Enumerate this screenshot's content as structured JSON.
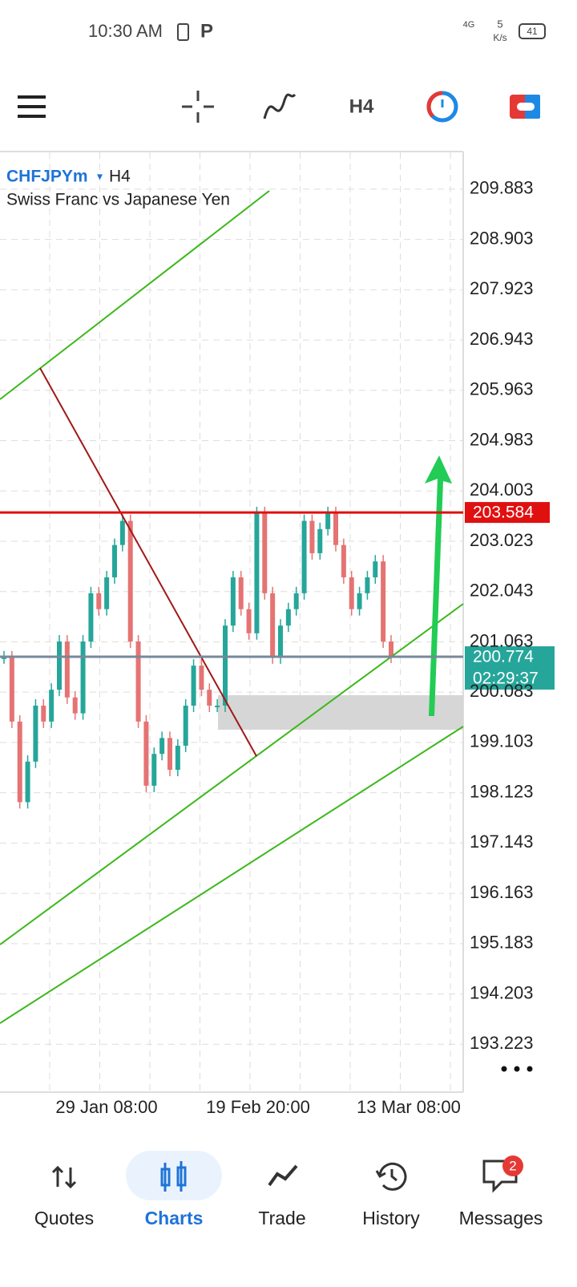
{
  "status_bar": {
    "time": "10:30 AM",
    "network": "4G",
    "speed": "5",
    "speed_unit": "K/s",
    "battery": "41"
  },
  "toolbar": {
    "timeframe": "H4"
  },
  "chart_data": {
    "type": "candlestick",
    "symbol": "CHFJPYm",
    "timeframe": "H4",
    "description": "Swiss Franc vs Japanese Yen",
    "values": [
      200.76,
      199.51,
      197.94,
      198.73,
      199.82,
      199.51,
      200.13,
      201.07,
      199.98,
      199.67,
      201.07,
      202.01,
      201.7,
      202.32,
      202.95,
      203.42,
      201.07,
      199.51,
      198.26,
      198.88,
      199.19,
      198.57,
      199.04,
      199.82,
      200.6,
      200.13,
      199.82,
      199.82,
      201.38,
      202.32,
      201.7,
      201.23,
      203.57,
      202.01,
      200.76,
      201.38,
      201.7,
      202.01,
      203.42,
      202.79,
      203.26,
      203.57,
      202.95,
      202.32,
      201.7,
      202.01,
      202.32,
      202.63,
      201.07,
      200.774
    ],
    "ylim": [
      192.29,
      210.6
    ],
    "yticks": [
      209.883,
      208.903,
      207.923,
      206.943,
      205.963,
      204.983,
      204.003,
      203.023,
      202.043,
      201.063,
      200.083,
      199.103,
      198.123,
      197.143,
      196.163,
      195.183,
      194.203,
      193.223
    ],
    "x_labels": [
      "29 Jan 08:00",
      "19 Feb 20:00",
      "13 Mar 08:00"
    ],
    "bid_line": 203.584,
    "bid_color": "#e01010",
    "current_price": 200.774,
    "countdown": "02:29:37",
    "up_color": "#26a69a",
    "down_color": "#e57373",
    "grid": true
  },
  "nav": {
    "items": [
      "Quotes",
      "Charts",
      "Trade",
      "History",
      "Messages"
    ],
    "active": 1,
    "badge": 2
  }
}
